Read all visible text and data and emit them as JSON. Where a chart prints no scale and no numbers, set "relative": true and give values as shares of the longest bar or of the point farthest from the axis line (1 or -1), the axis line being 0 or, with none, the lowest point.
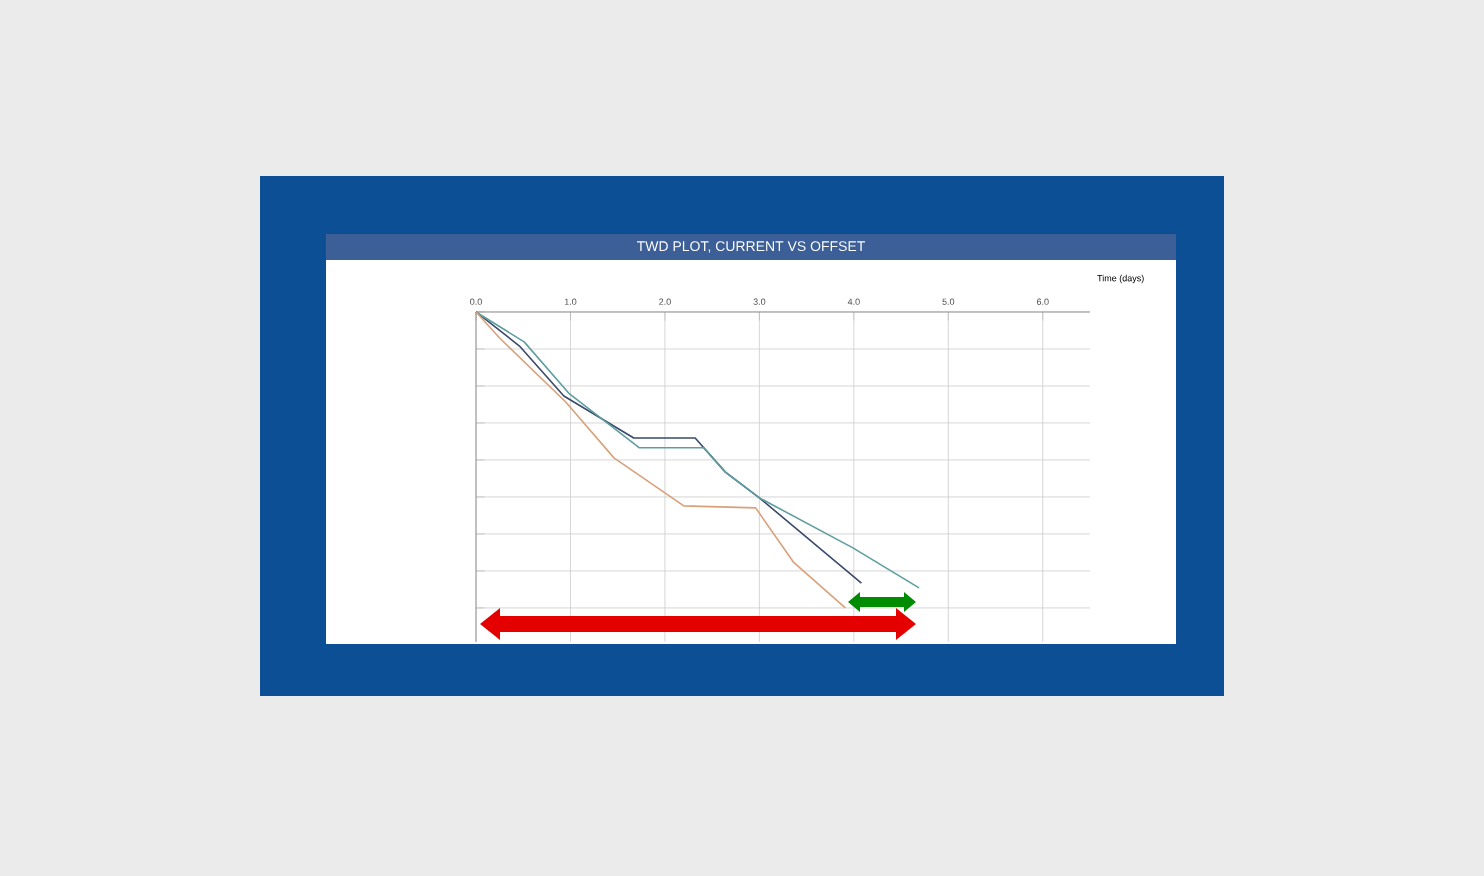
{
  "chart_data": {
    "type": "line",
    "title": "TWD PLOT, CURRENT VS OFFSET",
    "xlabel": "Time (days)",
    "relative": true,
    "xlim": [
      0,
      6.5
    ],
    "xticks": [
      {
        "value": 0,
        "label": "0.0"
      },
      {
        "value": 1,
        "label": "1.0"
      },
      {
        "value": 2,
        "label": "2.0"
      },
      {
        "value": 3,
        "label": "3.0"
      },
      {
        "value": 4,
        "label": "4.0"
      },
      {
        "value": 5,
        "label": "5.0"
      },
      {
        "value": 6,
        "label": "6.0"
      }
    ],
    "grid": true,
    "marker": "none",
    "line_style": "solid",
    "series": [
      {
        "color": "#3a4a6a",
        "x": [
          0,
          0.46,
          0.93,
          1.67,
          2.32,
          2.64,
          3.0,
          4.08
        ],
        "values": [
          0,
          -0.115,
          -0.284,
          -0.426,
          -0.426,
          -0.541,
          -0.628,
          -0.916
        ]
      },
      {
        "color": "#5f9ea0",
        "x": [
          0,
          0.51,
          0.99,
          1.73,
          2.41,
          2.64,
          3.0,
          3.99,
          4.69
        ],
        "values": [
          0,
          -0.101,
          -0.277,
          -0.459,
          -0.459,
          -0.541,
          -0.628,
          -0.797,
          -0.932
        ]
      },
      {
        "color": "#d9a07a",
        "x": [
          0,
          0.25,
          0.95,
          1.46,
          2.2,
          2.96,
          3.36,
          3.91
        ],
        "values": [
          0,
          -0.088,
          -0.304,
          -0.493,
          -0.655,
          -0.662,
          -0.845,
          -1
        ]
      }
    ]
  }
}
